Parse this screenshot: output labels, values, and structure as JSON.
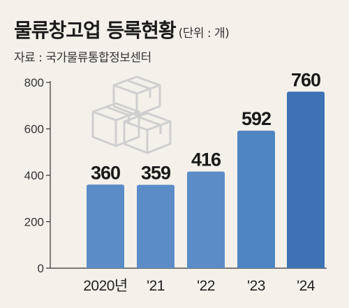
{
  "header": {
    "title": "물류창고업 등록현황",
    "unit": "(단위 : 개)",
    "source": "자료 : 국가물류통합정보센터"
  },
  "chart_data": {
    "type": "bar",
    "categories": [
      "2020년",
      "'21",
      "'22",
      "'23",
      "'24"
    ],
    "values": [
      360,
      359,
      416,
      592,
      760
    ],
    "value_labels": [
      "360",
      "359",
      "416",
      "592",
      "760"
    ],
    "yticks": [
      0,
      200,
      400,
      600,
      800
    ],
    "ylim": [
      0,
      800
    ],
    "colors": [
      "#5b8cc8",
      "#5b8cc8",
      "#5b8cc8",
      "#4f85c2",
      "#3f72b4"
    ],
    "grid": false,
    "decoration": "boxes-icon"
  }
}
